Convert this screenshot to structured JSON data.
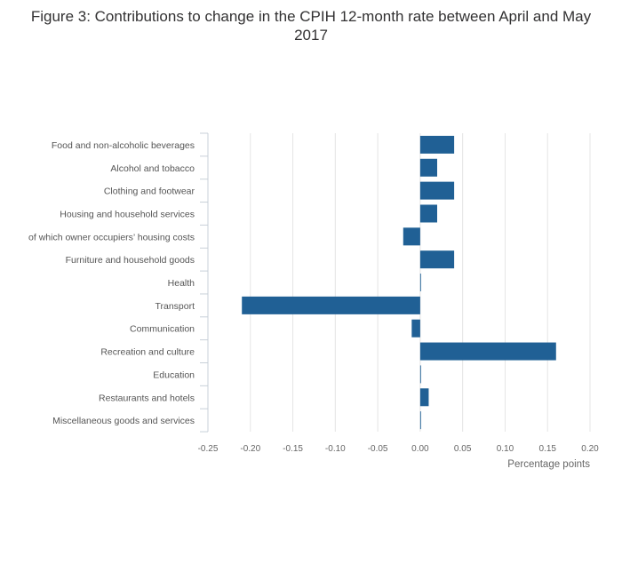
{
  "chart_data": {
    "type": "bar",
    "orientation": "horizontal",
    "title": "Figure 3: Contributions to change in the CPIH 12-month rate between April and May 2017",
    "xlabel": "Percentage points",
    "ylabel": "",
    "xlim": [
      -0.25,
      0.2
    ],
    "xticks": [
      -0.25,
      -0.2,
      -0.15,
      -0.1,
      -0.05,
      0,
      0.05,
      0.1,
      0.15,
      0.2
    ],
    "xtick_labels": [
      "-0.25",
      "-0.20",
      "-0.15",
      "-0.10",
      "-0.05",
      "0.00",
      "0.05",
      "0.10",
      "0.15",
      "0.20"
    ],
    "grid": true,
    "bar_color": "#206095",
    "categories": [
      "Food and non-alcoholic beverages",
      "Alcohol and tobacco",
      "Clothing and footwear",
      "Housing and household services",
      "of which owner occupiers’ housing costs",
      "Furniture and household goods",
      "Health",
      "Transport",
      "Communication",
      "Recreation and culture",
      "Education",
      "Restaurants and hotels",
      "Miscellaneous goods and services"
    ],
    "values": [
      0.04,
      0.02,
      0.04,
      0.02,
      -0.02,
      0.04,
      0.0,
      -0.21,
      -0.01,
      0.16,
      0.0,
      0.01,
      0.0
    ]
  }
}
